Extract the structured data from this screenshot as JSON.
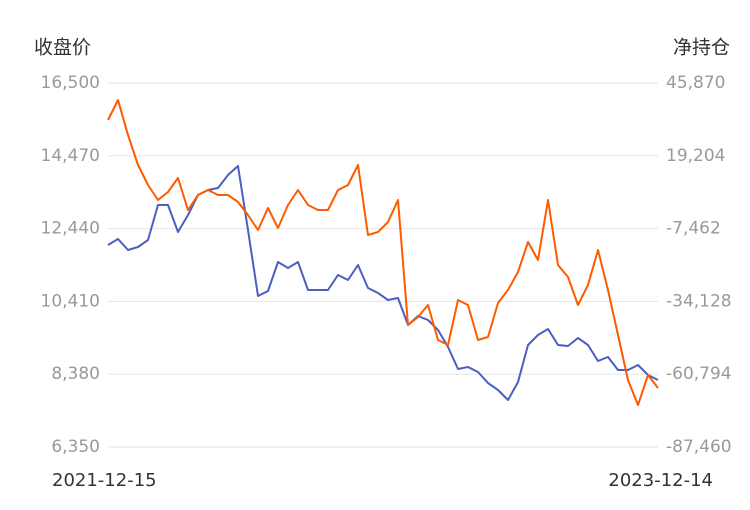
{
  "chart_data": {
    "type": "line",
    "y_label": "收盘价",
    "y2_label": "净持仓",
    "categories": [
      "2021-12-15",
      null,
      null,
      null,
      null,
      null,
      null,
      null,
      null,
      null,
      null,
      null,
      null,
      null,
      null,
      null,
      null,
      null,
      null,
      null,
      null,
      null,
      null,
      null,
      null,
      null,
      null,
      null,
      null,
      null,
      null,
      null,
      null,
      null,
      null,
      null,
      null,
      null,
      null,
      null,
      null,
      null,
      null,
      null,
      null,
      null,
      null,
      null,
      null,
      null,
      null,
      null,
      null,
      null,
      null,
      "2023-12-14"
    ],
    "series": [
      {
        "color": "#4a5fc1",
        "values": [
          11983,
          12150,
          11843,
          11927,
          12122,
          13098,
          13098,
          12345,
          12819,
          13377,
          13516,
          13572,
          13935,
          14186,
          12401,
          10560,
          10700,
          11509,
          11341,
          11509,
          10728,
          10728,
          10728,
          11146,
          11007,
          11425,
          10784,
          10644,
          10449,
          10505,
          9752,
          10003,
          9891,
          9612,
          9138,
          8525,
          8581,
          8441,
          8134,
          7939,
          7660,
          8162,
          9194,
          9473,
          9640,
          9194,
          9166,
          9389,
          9194,
          8748,
          8860,
          8497,
          8497,
          8636,
          8358,
          8218
        ]
      },
      {
        "color": "#ff5a00",
        "axis": "y2",
        "values": [
          32317,
          39643,
          26822,
          15833,
          8507,
          3013,
          5943,
          11071,
          -650,
          4844,
          6676,
          4844,
          4844,
          2280,
          -2482,
          -7976,
          82,
          -7244,
          1181,
          6676,
          1181,
          -650,
          -650,
          6676,
          8507,
          15833,
          -9808,
          -8709,
          -5046,
          3013,
          -42775,
          -39844,
          -35449,
          -48269,
          -50101,
          -33617,
          -35449,
          -48269,
          -47170,
          -34716,
          -29954,
          -23361,
          -12372,
          -18965,
          3013,
          -20797,
          -25192,
          -35449,
          -28123,
          -15302,
          -29954,
          -46438,
          -62921,
          -72079,
          -61090,
          -65852
        ]
      }
    ],
    "ylim": [
      6350,
      16500
    ],
    "yticks": [
      {
        "value": 6350,
        "label": "6,350"
      },
      {
        "value": 8380,
        "label": "8,380"
      },
      {
        "value": 10410,
        "label": "10,410"
      },
      {
        "value": 12440,
        "label": "12,440"
      },
      {
        "value": 14470,
        "label": "14,470"
      },
      {
        "value": 16500,
        "label": "16,500"
      }
    ],
    "y2lim": [
      -87460,
      45870
    ],
    "y2ticks": [
      {
        "value": -87460,
        "label": "-87,460"
      },
      {
        "value": -60794,
        "label": "-60,794"
      },
      {
        "value": -34128,
        "label": "-34,128"
      },
      {
        "value": -7462,
        "label": "-7,462"
      },
      {
        "value": 19204,
        "label": "19,204"
      },
      {
        "value": 45870,
        "label": "45,870"
      }
    ],
    "grid": true
  }
}
